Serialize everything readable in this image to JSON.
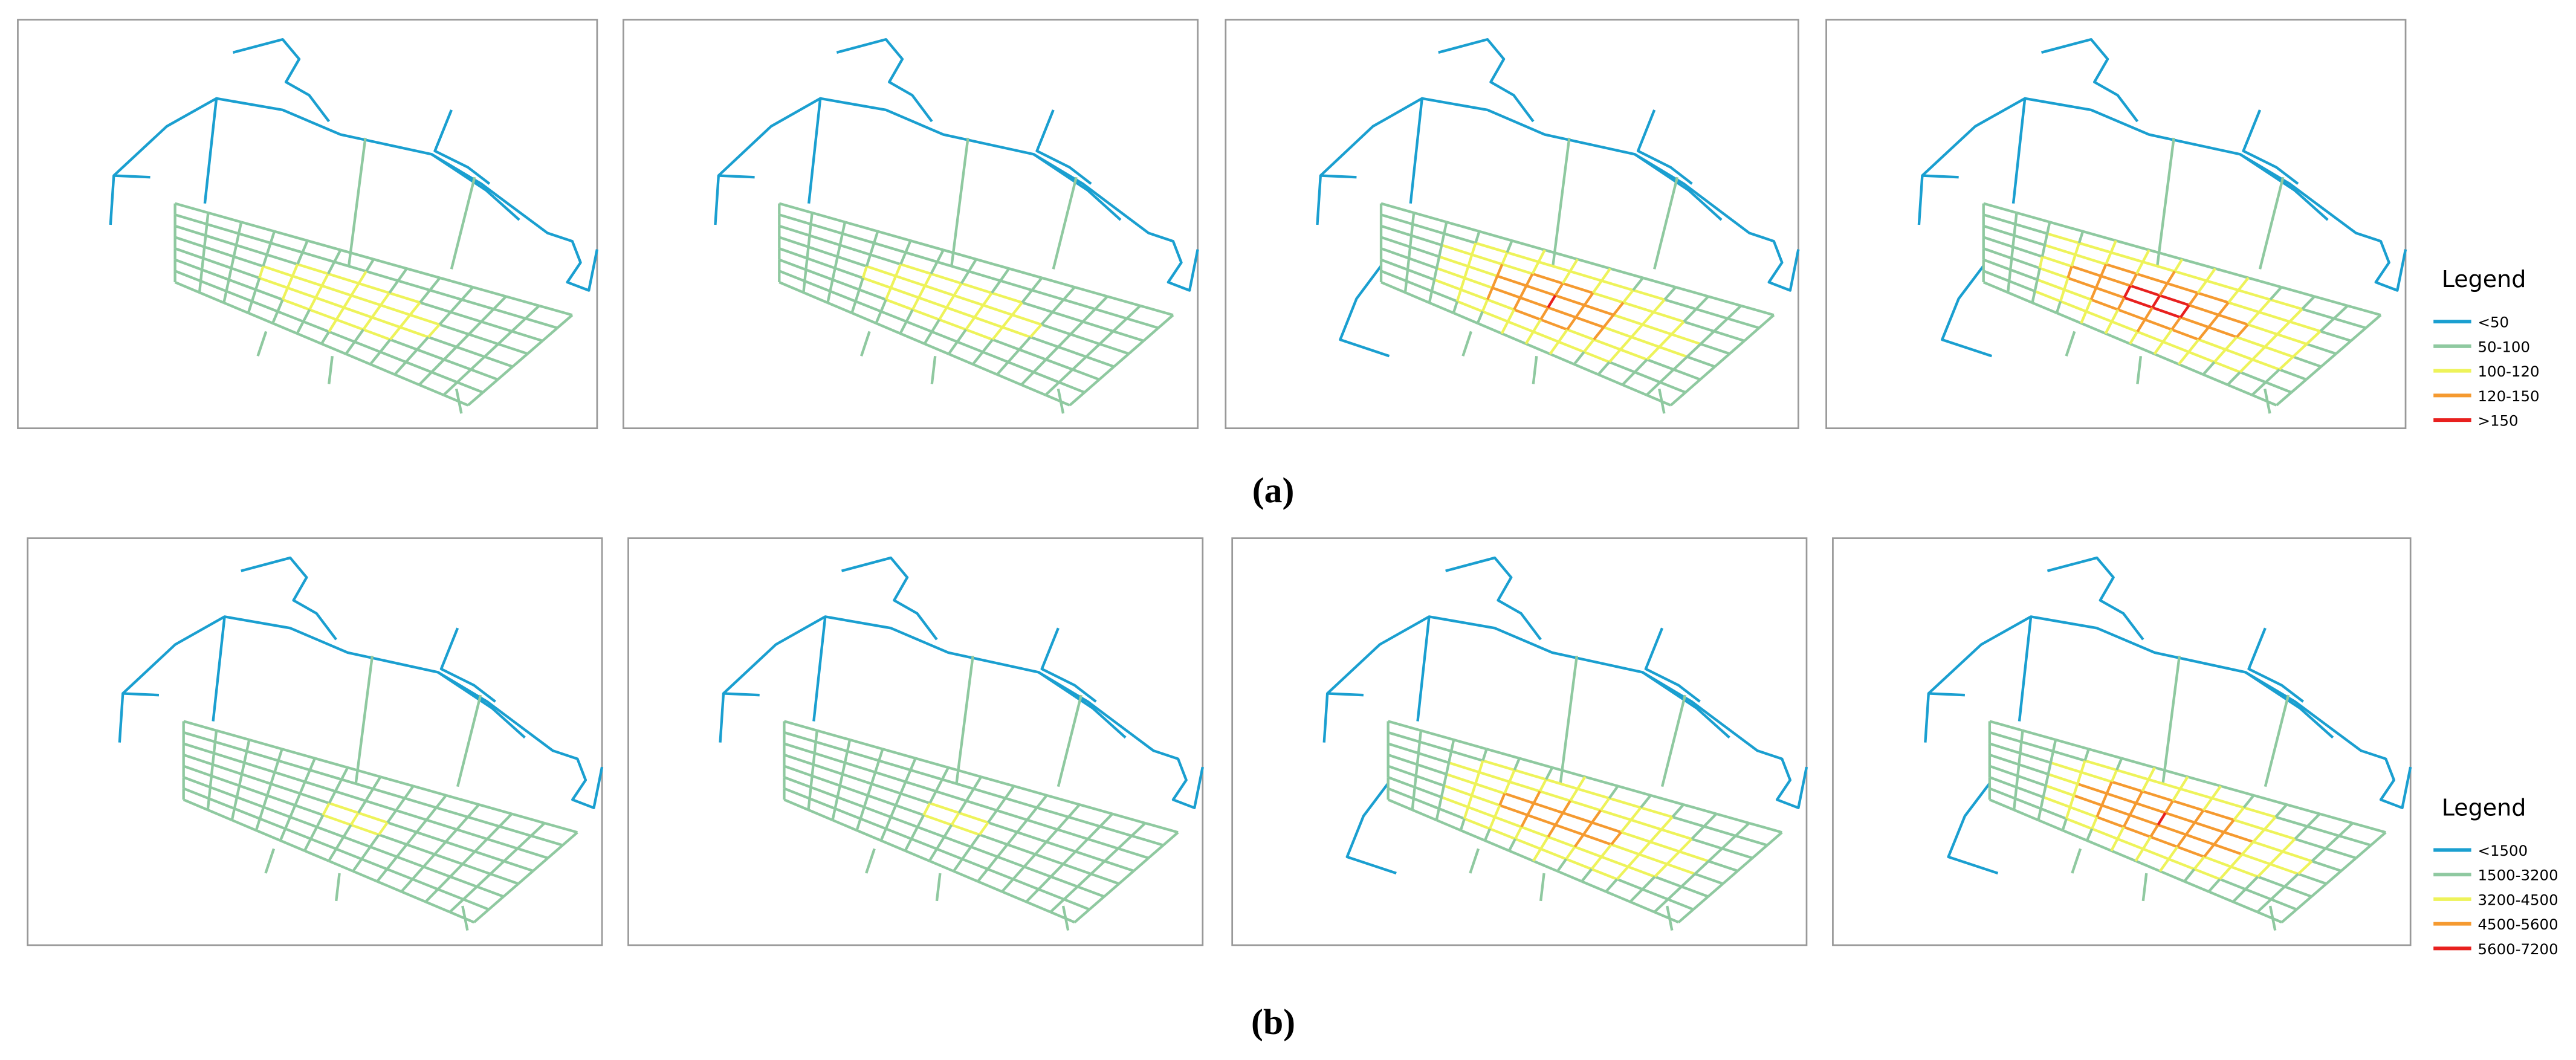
{
  "captions": [
    "(a)",
    "(b)"
  ],
  "legends": [
    {
      "title": "Legend",
      "items": [
        {
          "label": "<50",
          "color": "#1a9fd0"
        },
        {
          "label": "50-100",
          "color": "#8fc9a0"
        },
        {
          "label": "100-120",
          "color": "#eef35a"
        },
        {
          "label": "120-150",
          "color": "#f59a30"
        },
        {
          "label": ">150",
          "color": "#e8201e"
        }
      ]
    },
    {
      "title": "Legend",
      "items": [
        {
          "label": "<1500",
          "color": "#1a9fd0"
        },
        {
          "label": "1500-3200",
          "color": "#8fc9a0"
        },
        {
          "label": "3200-4500",
          "color": "#eef35a"
        },
        {
          "label": "4500-5600",
          "color": "#f59a30"
        },
        {
          "label": "5600-7200",
          "color": "#e8201e"
        }
      ]
    }
  ]
}
